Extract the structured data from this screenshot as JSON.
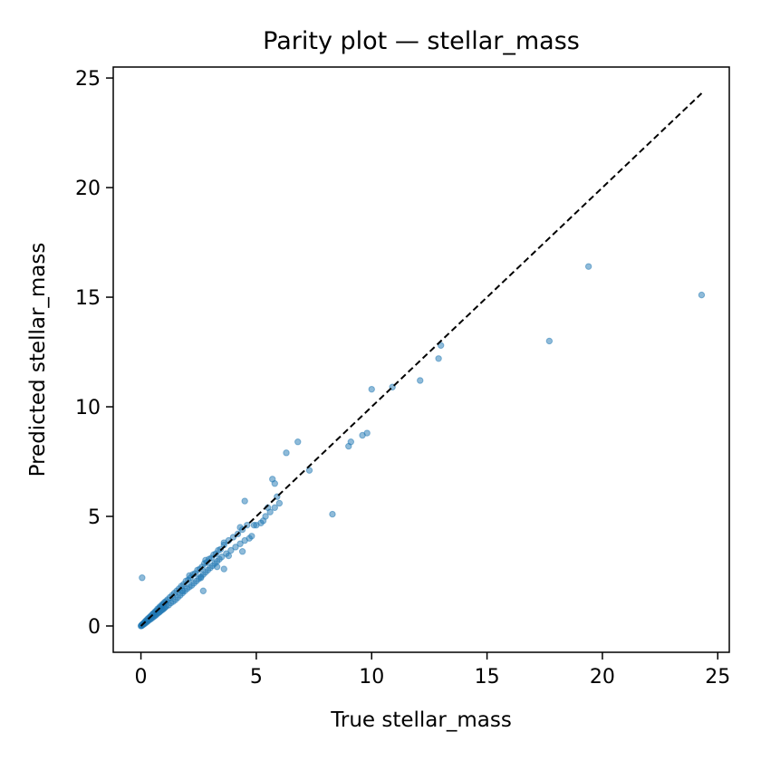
{
  "chart_data": {
    "type": "scatter",
    "title": "Parity plot — stellar_mass",
    "xlabel": "True stellar_mass",
    "ylabel": "Predicted stellar_mass",
    "xlim": [
      -1.2,
      25.5
    ],
    "ylim": [
      -1.2,
      25.5
    ],
    "xticks": [
      0,
      5,
      10,
      15,
      20,
      25
    ],
    "yticks": [
      0,
      5,
      10,
      15,
      20,
      25
    ],
    "grid": false,
    "point_color": "#1f77b4",
    "reference_line": {
      "from": [
        0,
        0
      ],
      "to": [
        24.3,
        24.3
      ],
      "style": "dashed",
      "color": "#000000"
    },
    "points": [
      [
        0.0,
        0.0
      ],
      [
        0.02,
        0.01
      ],
      [
        0.03,
        0.04
      ],
      [
        0.05,
        0.03
      ],
      [
        0.06,
        0.07
      ],
      [
        0.08,
        0.05
      ],
      [
        0.1,
        0.11
      ],
      [
        0.12,
        0.08
      ],
      [
        0.14,
        0.15
      ],
      [
        0.15,
        0.1
      ],
      [
        0.18,
        0.2
      ],
      [
        0.2,
        0.14
      ],
      [
        0.22,
        0.24
      ],
      [
        0.25,
        0.18
      ],
      [
        0.27,
        0.3
      ],
      [
        0.3,
        0.22
      ],
      [
        0.32,
        0.35
      ],
      [
        0.35,
        0.27
      ],
      [
        0.38,
        0.4
      ],
      [
        0.4,
        0.3
      ],
      [
        0.42,
        0.45
      ],
      [
        0.45,
        0.34
      ],
      [
        0.48,
        0.5
      ],
      [
        0.5,
        0.38
      ],
      [
        0.52,
        0.56
      ],
      [
        0.55,
        0.42
      ],
      [
        0.58,
        0.6
      ],
      [
        0.6,
        0.46
      ],
      [
        0.62,
        0.66
      ],
      [
        0.65,
        0.5
      ],
      [
        0.68,
        0.7
      ],
      [
        0.7,
        0.55
      ],
      [
        0.72,
        0.78
      ],
      [
        0.75,
        0.6
      ],
      [
        0.78,
        0.8
      ],
      [
        0.8,
        0.63
      ],
      [
        0.82,
        0.88
      ],
      [
        0.85,
        0.68
      ],
      [
        0.88,
        0.9
      ],
      [
        0.9,
        0.72
      ],
      [
        0.92,
        0.98
      ],
      [
        0.95,
        0.76
      ],
      [
        0.98,
        1.0
      ],
      [
        1.0,
        0.8
      ],
      [
        1.02,
        1.08
      ],
      [
        1.05,
        0.85
      ],
      [
        1.08,
        1.12
      ],
      [
        1.1,
        0.9
      ],
      [
        1.15,
        1.2
      ],
      [
        1.2,
        0.95
      ],
      [
        1.25,
        1.3
      ],
      [
        1.3,
        1.05
      ],
      [
        1.35,
        1.4
      ],
      [
        1.4,
        1.12
      ],
      [
        1.45,
        1.5
      ],
      [
        1.5,
        1.2
      ],
      [
        1.55,
        1.6
      ],
      [
        1.6,
        1.3
      ],
      [
        1.65,
        1.7
      ],
      [
        1.7,
        1.4
      ],
      [
        1.75,
        1.82
      ],
      [
        1.8,
        1.5
      ],
      [
        1.85,
        1.9
      ],
      [
        1.9,
        1.6
      ],
      [
        1.95,
        2.05
      ],
      [
        2.0,
        1.7
      ],
      [
        2.05,
        2.1
      ],
      [
        2.1,
        1.78
      ],
      [
        2.15,
        2.2
      ],
      [
        2.2,
        1.85
      ],
      [
        2.25,
        2.35
      ],
      [
        2.3,
        1.95
      ],
      [
        2.35,
        2.4
      ],
      [
        2.4,
        2.05
      ],
      [
        2.45,
        2.55
      ],
      [
        2.5,
        2.15
      ],
      [
        2.55,
        2.6
      ],
      [
        2.6,
        2.25
      ],
      [
        2.65,
        2.7
      ],
      [
        2.7,
        2.35
      ],
      [
        2.75,
        2.85
      ],
      [
        2.8,
        2.45
      ],
      [
        2.85,
        2.9
      ],
      [
        2.9,
        2.55
      ],
      [
        2.95,
        3.05
      ],
      [
        3.0,
        2.65
      ],
      [
        3.05,
        3.1
      ],
      [
        3.1,
        2.75
      ],
      [
        3.15,
        3.25
      ],
      [
        3.2,
        2.85
      ],
      [
        3.25,
        3.3
      ],
      [
        3.3,
        2.95
      ],
      [
        3.35,
        3.45
      ],
      [
        3.4,
        3.05
      ],
      [
        3.45,
        3.5
      ],
      [
        3.5,
        3.15
      ],
      [
        3.6,
        3.7
      ],
      [
        3.7,
        3.3
      ],
      [
        3.8,
        3.9
      ],
      [
        3.9,
        3.45
      ],
      [
        4.0,
        4.05
      ],
      [
        4.1,
        3.6
      ],
      [
        4.2,
        4.2
      ],
      [
        4.3,
        3.75
      ],
      [
        4.4,
        4.4
      ],
      [
        4.5,
        3.9
      ],
      [
        4.6,
        4.6
      ],
      [
        4.7,
        4.0
      ],
      [
        4.8,
        4.1
      ],
      [
        5.0,
        4.6
      ],
      [
        5.2,
        4.7
      ],
      [
        5.4,
        5.0
      ],
      [
        5.6,
        5.2
      ],
      [
        5.8,
        5.4
      ],
      [
        6.0,
        5.6
      ],
      [
        2.8,
        3.0
      ],
      [
        3.6,
        3.8
      ],
      [
        4.3,
        4.5
      ],
      [
        1.8,
        1.6
      ],
      [
        2.1,
        2.3
      ],
      [
        2.6,
        2.2
      ],
      [
        3.3,
        2.7
      ],
      [
        3.8,
        3.2
      ],
      [
        0.05,
        2.2
      ],
      [
        2.7,
        1.6
      ],
      [
        3.6,
        2.6
      ],
      [
        4.4,
        3.4
      ],
      [
        4.5,
        5.7
      ],
      [
        4.9,
        4.6
      ],
      [
        5.3,
        4.8
      ],
      [
        5.5,
        5.4
      ],
      [
        5.7,
        6.7
      ],
      [
        5.8,
        6.5
      ],
      [
        5.9,
        5.9
      ],
      [
        6.3,
        7.9
      ],
      [
        6.8,
        8.4
      ],
      [
        7.3,
        7.1
      ],
      [
        8.3,
        5.1
      ],
      [
        9.0,
        8.2
      ],
      [
        9.1,
        8.4
      ],
      [
        9.6,
        8.7
      ],
      [
        9.8,
        8.8
      ],
      [
        10.0,
        10.8
      ],
      [
        10.9,
        10.9
      ],
      [
        12.1,
        11.2
      ],
      [
        12.9,
        12.2
      ],
      [
        13.0,
        12.8
      ],
      [
        17.7,
        13.0
      ],
      [
        19.4,
        16.4
      ],
      [
        24.3,
        15.1
      ]
    ]
  }
}
